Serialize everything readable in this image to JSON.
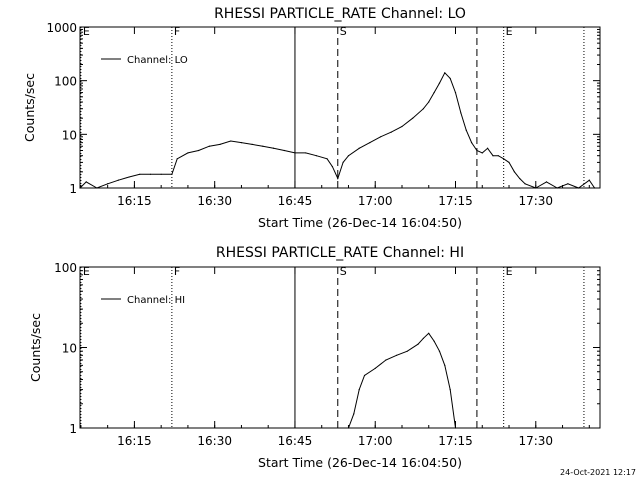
{
  "chart_data": [
    {
      "type": "line",
      "title": "RHESSI PARTICLE_RATE Channel: LO",
      "xlabel": "Start Time (26-Dec-14 16:04:50)",
      "ylabel": "Counts/sec",
      "yscale": "log",
      "ylim": [
        1,
        1000
      ],
      "xlim": [
        "16:04:50",
        "17:42:00"
      ],
      "xticks": [
        "16:15",
        "16:30",
        "16:45",
        "17:00",
        "17:15",
        "17:30"
      ],
      "yticks": [
        "1",
        "10",
        "100",
        "1000"
      ],
      "legend": {
        "label": "Channel: LO",
        "placement": "top-left"
      },
      "markers": [
        {
          "time": "16:05",
          "label": "E",
          "style": "dotted"
        },
        {
          "time": "16:22",
          "label": "F",
          "style": "dotted"
        },
        {
          "time": "16:45",
          "label": "",
          "style": "solid"
        },
        {
          "time": "16:53",
          "label": "S",
          "style": "dashed"
        },
        {
          "time": "17:19",
          "label": "",
          "style": "dashed"
        },
        {
          "time": "17:24",
          "label": "E",
          "style": "dotted"
        },
        {
          "time": "17:39",
          "label": "",
          "style": "dotted"
        }
      ],
      "series": [
        {
          "name": "Channel: LO",
          "x": [
            "16:04:50",
            "16:06",
            "16:08",
            "16:10",
            "16:12",
            "16:14",
            "16:16",
            "16:18",
            "16:20",
            "16:22",
            "16:23",
            "16:25",
            "16:27",
            "16:29",
            "16:31",
            "16:33",
            "16:35",
            "16:37",
            "16:39",
            "16:41",
            "16:43",
            "16:45",
            "16:47",
            "16:49",
            "16:51",
            "16:52",
            "16:53",
            "16:54",
            "16:55",
            "16:57",
            "16:59",
            "17:01",
            "17:03",
            "17:05",
            "17:07",
            "17:09",
            "17:10",
            "17:11",
            "17:12",
            "17:13",
            "17:14",
            "17:15",
            "17:16",
            "17:17",
            "17:18",
            "17:19",
            "17:20",
            "17:21",
            "17:22",
            "17:23",
            "17:24",
            "17:25",
            "17:26",
            "17:27",
            "17:28",
            "17:30",
            "17:32",
            "17:34",
            "17:36",
            "17:38",
            "17:40",
            "17:41"
          ],
          "y": [
            1,
            1.3,
            1,
            1.2,
            1.4,
            1.6,
            1.8,
            1.8,
            1.8,
            1.8,
            3.5,
            4.5,
            5,
            6,
            6.5,
            7.5,
            7,
            6.5,
            6,
            5.5,
            5,
            4.5,
            4.5,
            4,
            3.5,
            2.5,
            1.5,
            3,
            4,
            5.5,
            7,
            9,
            11,
            14,
            20,
            30,
            40,
            60,
            90,
            140,
            110,
            60,
            25,
            12,
            7,
            5,
            4.5,
            5.5,
            4,
            4,
            3.5,
            3,
            2,
            1.5,
            1.2,
            1,
            1.3,
            1,
            1.2,
            1,
            1.4,
            1
          ]
        }
      ]
    },
    {
      "type": "line",
      "title": "RHESSI PARTICLE_RATE Channel: HI",
      "xlabel": "Start Time (26-Dec-14 16:04:50)",
      "ylabel": "Counts/sec",
      "yscale": "log",
      "ylim": [
        1,
        100
      ],
      "xlim": [
        "16:04:50",
        "17:42:00"
      ],
      "xticks": [
        "16:15",
        "16:30",
        "16:45",
        "17:00",
        "17:15",
        "17:30"
      ],
      "yticks": [
        "1",
        "10",
        "100"
      ],
      "legend": {
        "label": "Channel: HI",
        "placement": "top-left"
      },
      "markers": [
        {
          "time": "16:05",
          "label": "E",
          "style": "dotted"
        },
        {
          "time": "16:22",
          "label": "F",
          "style": "dotted"
        },
        {
          "time": "16:45",
          "label": "",
          "style": "solid"
        },
        {
          "time": "16:53",
          "label": "S",
          "style": "dashed"
        },
        {
          "time": "17:19",
          "label": "",
          "style": "dashed"
        },
        {
          "time": "17:24",
          "label": "E",
          "style": "dotted"
        },
        {
          "time": "17:39",
          "label": "",
          "style": "dotted"
        }
      ],
      "series": [
        {
          "name": "Channel: HI",
          "x": [
            "16:55",
            "16:56",
            "16:57",
            "16:58",
            "17:00",
            "17:02",
            "17:04",
            "17:06",
            "17:08",
            "17:09",
            "17:10",
            "17:11",
            "17:12",
            "17:13",
            "17:14",
            "17:15"
          ],
          "y": [
            1,
            1.5,
            3,
            4.5,
            5.5,
            7,
            8,
            9,
            11,
            13,
            15,
            12,
            9,
            6,
            3,
            1
          ]
        }
      ]
    }
  ],
  "footer": "24-Oct-2021 12:17"
}
